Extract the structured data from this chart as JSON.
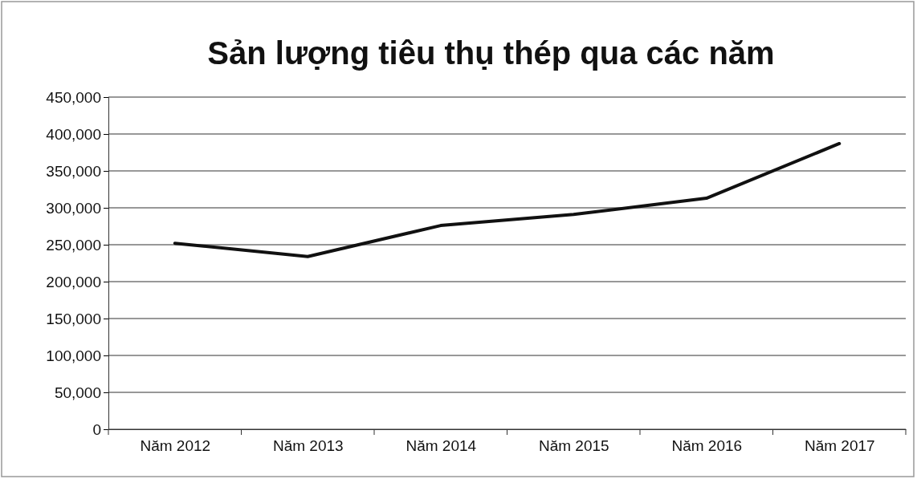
{
  "chart_data": {
    "type": "line",
    "title": "Sản lượng tiêu thụ thép qua các năm",
    "categories": [
      "Năm 2012",
      "Năm 2013",
      "Năm 2014",
      "Năm 2015",
      "Năm 2016",
      "Năm 2017"
    ],
    "series": [
      {
        "color": "#111111",
        "values": [
          252000,
          234000,
          276000,
          291000,
          313000,
          387000
        ]
      }
    ],
    "ylim": [
      0,
      450000
    ],
    "yticks": [
      {
        "value": 0,
        "label": "0"
      },
      {
        "value": 50000,
        "label": "50,000"
      },
      {
        "value": 100000,
        "label": "100,000"
      },
      {
        "value": 150000,
        "label": "150,000"
      },
      {
        "value": 200000,
        "label": "200,000"
      },
      {
        "value": 250000,
        "label": "250,000"
      },
      {
        "value": 300000,
        "label": "300,000"
      },
      {
        "value": 350000,
        "label": "350,000"
      },
      {
        "value": 400000,
        "label": "400,000"
      },
      {
        "value": 450000,
        "label": "450,000"
      }
    ],
    "grid": "y",
    "marker": "none",
    "line_style": "solid"
  }
}
